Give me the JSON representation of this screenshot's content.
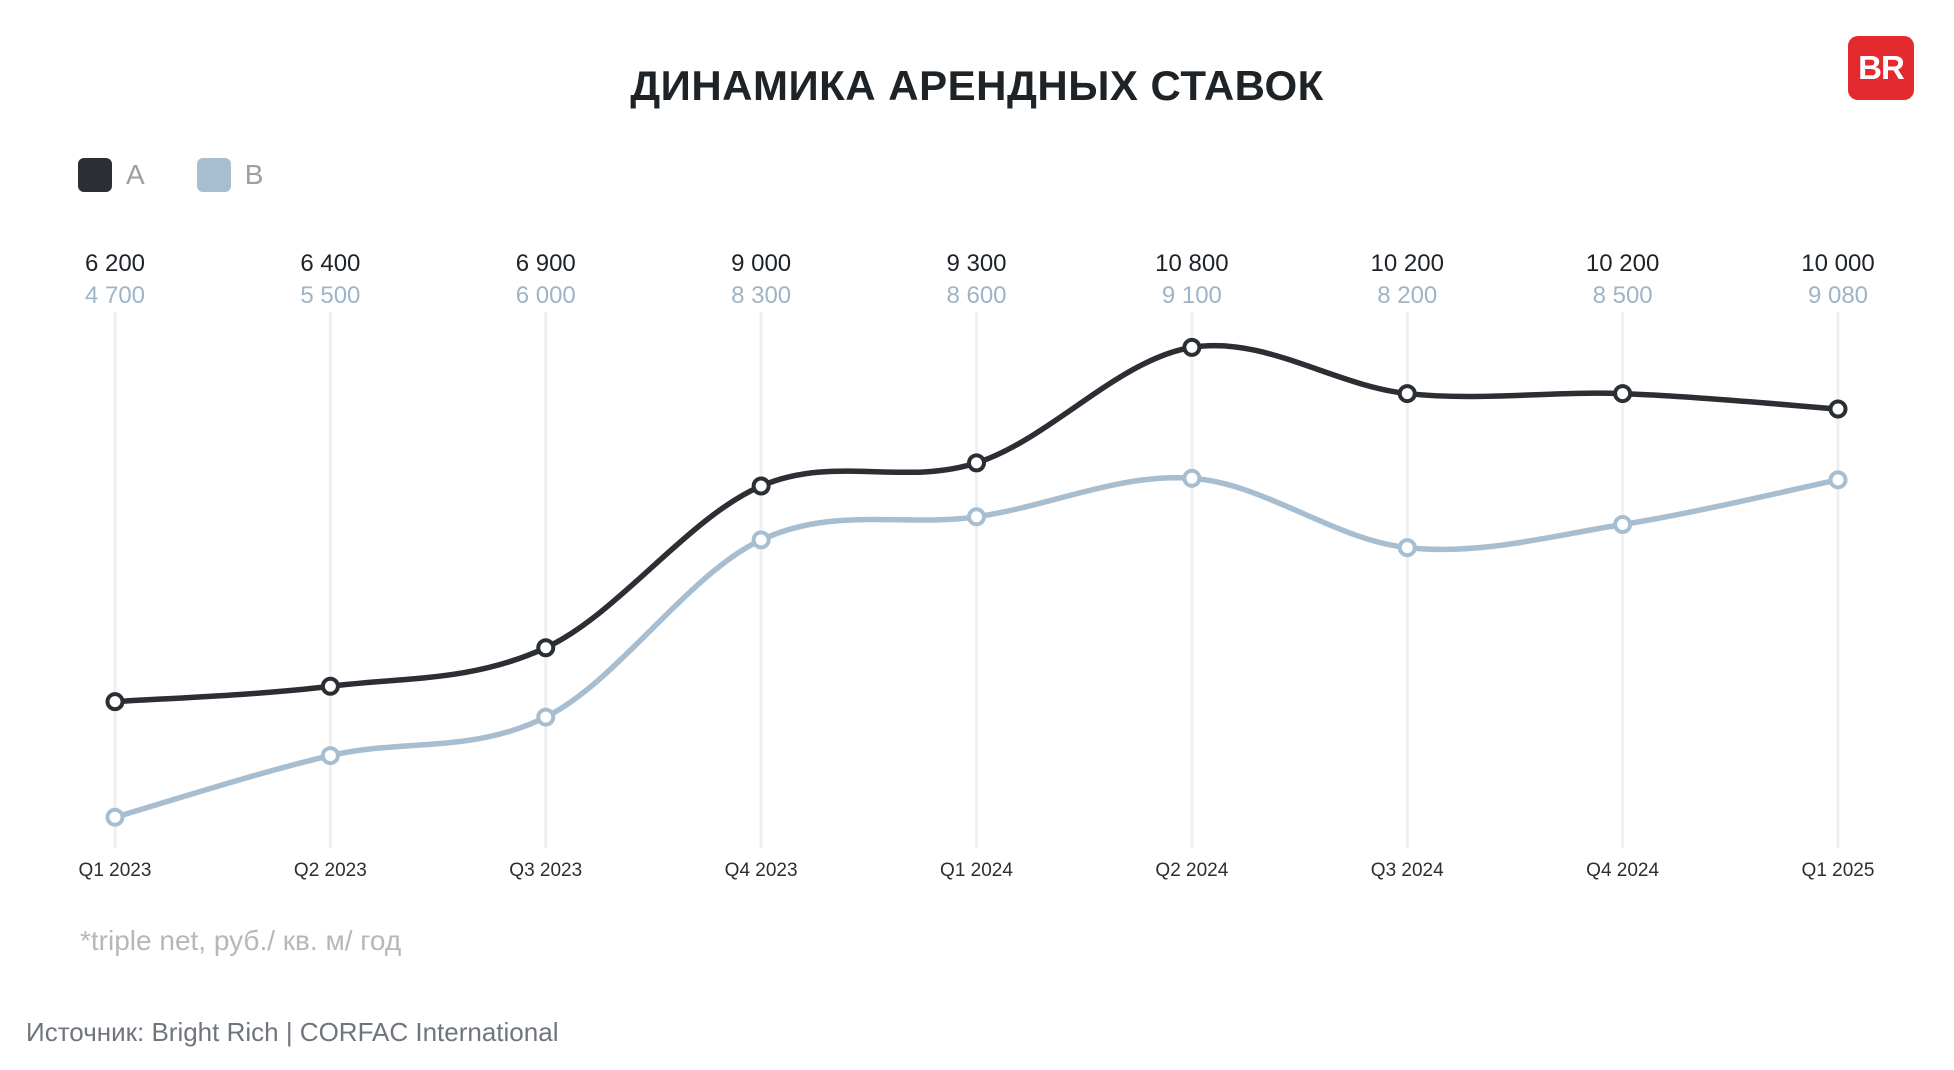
{
  "title": "ДИНАМИКА АРЕНДНЫХ СТАВОК",
  "logo_text": "BR",
  "legend": [
    {
      "label": "A",
      "color": "#2b2f33"
    },
    {
      "label": "B",
      "color": "#a7bdd0"
    }
  ],
  "note": "*triple net,  руб./ кв. м/ год",
  "source": "Источник: Bright Rich | CORFAC International",
  "chart_data": {
    "type": "line",
    "title": "ДИНАМИКА АРЕНДНЫХ СТАВОК",
    "xlabel": "",
    "ylabel": "",
    "categories": [
      "Q1 2023",
      "Q2 2023",
      "Q3 2023",
      "Q4 2023",
      "Q1 2024",
      "Q2 2024",
      "Q3 2024",
      "Q4 2024",
      "Q1 2025"
    ],
    "series": [
      {
        "name": "A",
        "color": "#2b2f33",
        "values": [
          6200,
          6400,
          6900,
          9000,
          9300,
          10800,
          10200,
          10200,
          10000
        ],
        "labels": [
          "6 200",
          "6 400",
          "6 900",
          "9 000",
          "9 300",
          "10 800",
          "10 200",
          "10 200",
          "10 000"
        ]
      },
      {
        "name": "B",
        "color": "#a7bdd0",
        "values": [
          4700,
          5500,
          6000,
          8300,
          8600,
          9100,
          8200,
          8500,
          9080
        ],
        "labels": [
          "4 700",
          "5 500",
          "6 000",
          "8 300",
          "8 600",
          "9 100",
          "8 200",
          "8 500",
          "9 080"
        ]
      }
    ],
    "ylim": [
      4300,
      11350
    ],
    "grid": "vertical",
    "legend": "top-left"
  }
}
